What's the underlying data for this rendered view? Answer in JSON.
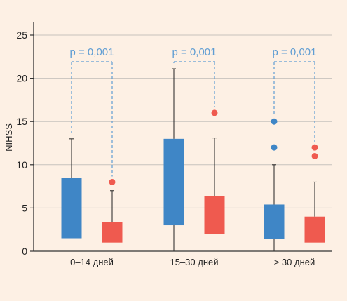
{
  "chart_data": {
    "type": "box",
    "ylabel": "NIHSS",
    "ylim": [
      0,
      25
    ],
    "yticks": [
      0,
      5,
      10,
      15,
      20,
      25
    ],
    "grid": true,
    "colors": {
      "blue": "#3f86c6",
      "red": "#ef5a4f",
      "pvalue": "#5f9dd3",
      "grid": "#c7c2bd",
      "axis": "#333333"
    },
    "groups": [
      {
        "label": "0–14 дней",
        "pvalue": "p = 0,001",
        "boxes": [
          {
            "color": "blue",
            "min": 1.5,
            "q1": 1.5,
            "q3": 8.5,
            "max": 13.0,
            "outliers": []
          },
          {
            "color": "red",
            "min": 1.0,
            "q1": 1.0,
            "q3": 3.4,
            "max": 7.0,
            "outliers": [
              8.0
            ]
          }
        ]
      },
      {
        "label": "15–30 дней",
        "pvalue": "p = 0,001",
        "boxes": [
          {
            "color": "blue",
            "min": 0.0,
            "q1": 3.0,
            "q3": 13.0,
            "max": 21.1,
            "outliers": []
          },
          {
            "color": "red",
            "min": 2.0,
            "q1": 2.0,
            "q3": 6.4,
            "max": 13.1,
            "outliers": [
              16.0
            ]
          }
        ]
      },
      {
        "label": "> 30 дней",
        "pvalue": "p = 0,001",
        "boxes": [
          {
            "color": "blue",
            "min": 0.0,
            "q1": 1.4,
            "q3": 5.4,
            "max": 10.0,
            "outliers": [
              12.0,
              15.0
            ]
          },
          {
            "color": "red",
            "min": 1.0,
            "q1": 1.0,
            "q3": 4.0,
            "max": 8.0,
            "outliers": [
              11.0,
              12.0
            ]
          }
        ]
      }
    ]
  }
}
